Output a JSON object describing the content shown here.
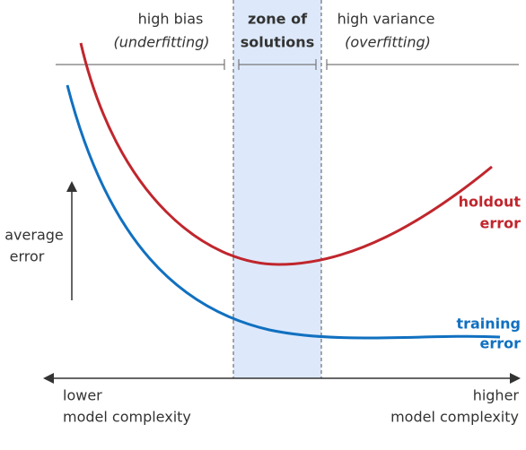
{
  "zones": {
    "left": {
      "title": "high bias",
      "subtitle": "(underfitting)"
    },
    "middle": {
      "lines": [
        "zone of",
        "solutions"
      ]
    },
    "right": {
      "title": "high variance",
      "subtitle": "(overfitting)"
    }
  },
  "curves": {
    "holdout": {
      "label": [
        "holdout",
        "error"
      ]
    },
    "training": {
      "label": [
        "training",
        "error"
      ]
    }
  },
  "y_axis": {
    "label": [
      "average",
      "error"
    ]
  },
  "x_axis": {
    "low": [
      "lower",
      "model complexity"
    ],
    "high": [
      "higher",
      "model complexity"
    ]
  }
}
